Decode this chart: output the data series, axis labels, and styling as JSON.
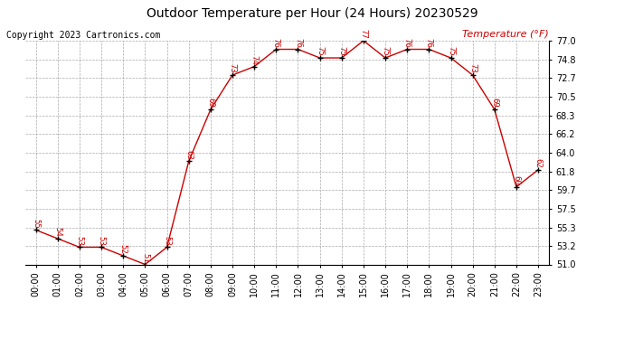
{
  "title": "Outdoor Temperature per Hour (24 Hours) 20230529",
  "copyright_text": "Copyright 2023 Cartronics.com",
  "legend_label": "Temperature (°F)",
  "hours": [
    "00:00",
    "01:00",
    "02:00",
    "03:00",
    "04:00",
    "05:00",
    "06:00",
    "07:00",
    "08:00",
    "09:00",
    "10:00",
    "11:00",
    "12:00",
    "13:00",
    "14:00",
    "15:00",
    "16:00",
    "17:00",
    "18:00",
    "19:00",
    "20:00",
    "21:00",
    "22:00",
    "23:00"
  ],
  "temperatures": [
    55,
    54,
    53,
    53,
    52,
    51,
    53,
    63,
    69,
    73,
    74,
    76,
    76,
    75,
    75,
    77,
    75,
    76,
    76,
    75,
    73,
    69,
    60,
    62
  ],
  "line_color": "#cc0000",
  "marker_color": "#000000",
  "label_color": "#cc0000",
  "grid_color": "#aaaaaa",
  "bg_color": "#ffffff",
  "title_color": "#000000",
  "copyright_color": "#000000",
  "legend_color": "#cc0000",
  "ylim_min": 51.0,
  "ylim_max": 77.0,
  "yticks": [
    51.0,
    53.2,
    55.3,
    57.5,
    59.7,
    61.8,
    64.0,
    66.2,
    68.3,
    70.5,
    72.7,
    74.8,
    77.0
  ],
  "title_fontsize": 10,
  "copyright_fontsize": 7,
  "label_fontsize": 6.5,
  "tick_fontsize": 7,
  "legend_fontsize": 8
}
